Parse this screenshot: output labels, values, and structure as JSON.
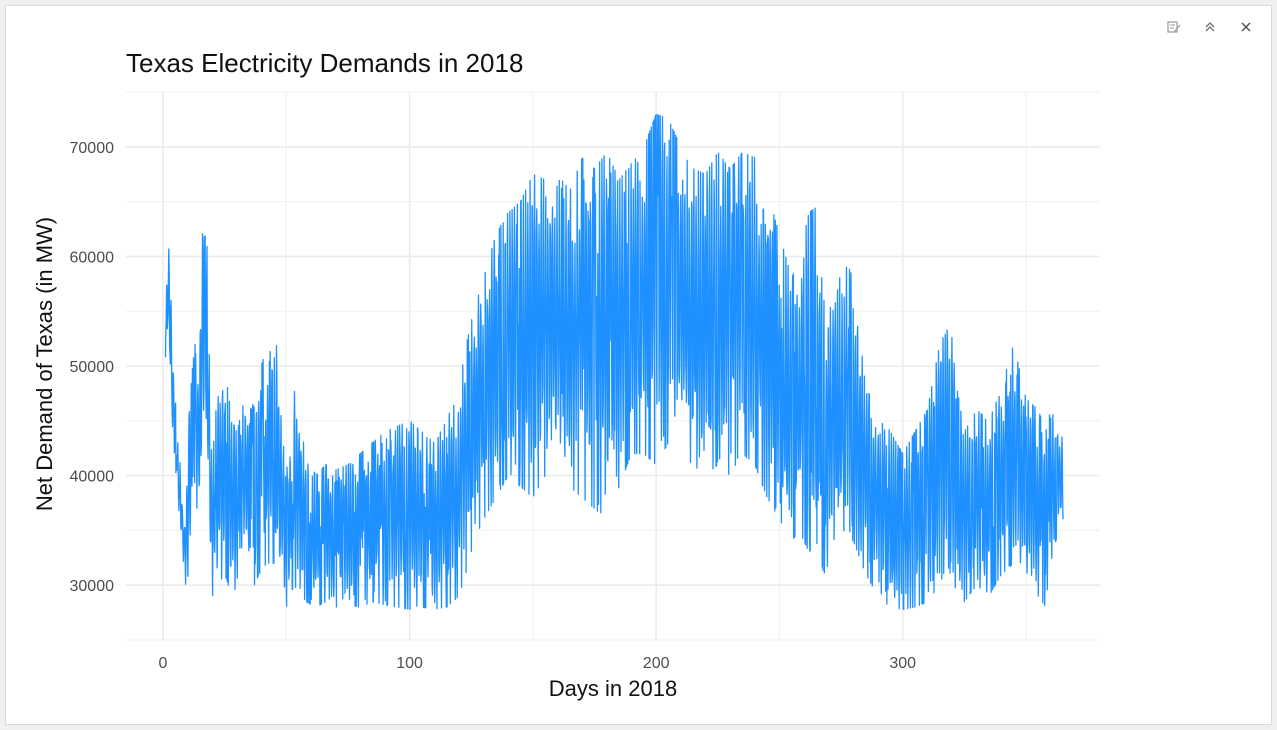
{
  "toolbar": {
    "icons": [
      "broom-icon",
      "chevron-double-up-icon",
      "close-icon"
    ]
  },
  "chart_data": {
    "type": "line",
    "title": "Texas Electricity Demands in 2018",
    "xlabel": "Days in 2018",
    "ylabel": "Net Demand of Texas (in MW)",
    "xlim": [
      -15,
      380
    ],
    "ylim": [
      25000,
      75000
    ],
    "xticks": [
      0,
      100,
      200,
      300
    ],
    "yticks": [
      30000,
      40000,
      50000,
      60000,
      70000
    ],
    "grid": true,
    "legend": "none",
    "series_color": "#1E90FF",
    "series": [
      {
        "x": [
          1,
          1.5,
          2,
          3,
          4,
          5,
          6,
          7,
          8,
          9,
          10,
          11,
          12,
          13,
          14,
          15,
          16,
          17,
          18,
          19,
          20,
          21,
          22,
          25,
          28,
          30,
          33,
          36,
          39,
          42,
          45,
          48,
          50,
          53,
          55,
          58,
          62,
          66,
          70,
          75,
          80,
          85,
          90,
          95,
          100,
          105,
          110,
          115,
          120,
          123,
          126,
          130,
          135,
          140,
          145,
          150,
          155,
          160,
          165,
          170,
          175,
          180,
          185,
          190,
          195,
          200,
          205,
          210,
          215,
          220,
          225,
          230,
          235,
          240,
          245,
          250,
          255,
          258,
          262,
          265,
          268,
          272,
          276,
          280,
          285,
          290,
          295,
          300,
          305,
          310,
          315,
          318,
          322,
          325,
          330,
          335,
          340,
          345,
          350,
          355,
          358,
          360,
          362,
          365
        ],
        "high": [
          55000,
          57500,
          62500,
          57500,
          52000,
          47000,
          43000,
          41000,
          37000,
          35000,
          43000,
          47000,
          50000,
          52000,
          49000,
          56000,
          62000,
          65500,
          60000,
          48000,
          42000,
          44000,
          48000,
          50000,
          45000,
          44000,
          47000,
          46000,
          49000,
          52000,
          55500,
          45000,
          40000,
          48000,
          46000,
          42000,
          40000,
          41000,
          40500,
          41000,
          42000,
          43000,
          44000,
          44500,
          45000,
          44000,
          43000,
          45000,
          48000,
          52000,
          55000,
          58000,
          62000,
          64000,
          65000,
          67500,
          67000,
          67500,
          66000,
          69000,
          68000,
          69500,
          67000,
          68500,
          70000,
          73000,
          72500,
          70000,
          68000,
          67500,
          69500,
          68000,
          69500,
          69000,
          66000,
          62000,
          58000,
          60000,
          64000,
          64500,
          56000,
          55000,
          60000,
          58000,
          48000,
          46000,
          44000,
          42000,
          44000,
          46000,
          52000,
          57000,
          48000,
          44000,
          46000,
          45000,
          48000,
          52000,
          47000,
          46000,
          44000,
          46000,
          45000,
          44000
        ],
        "low": [
          50000,
          51000,
          52000,
          48000,
          44000,
          41000,
          38000,
          35000,
          33000,
          30000,
          30500,
          32000,
          36000,
          38000,
          36000,
          37000,
          40000,
          45000,
          38000,
          33000,
          29000,
          29500,
          30000,
          31000,
          29000,
          30000,
          32000,
          29500,
          31000,
          32000,
          32000,
          29000,
          28000,
          30000,
          29500,
          28500,
          28000,
          28500,
          28000,
          28200,
          28000,
          28500,
          28200,
          28000,
          27800,
          28000,
          27800,
          28000,
          29000,
          31000,
          34000,
          36000,
          38000,
          40000,
          39000,
          38000,
          40000,
          41000,
          39000,
          38000,
          37000,
          36000,
          39000,
          42000,
          42000,
          41000,
          43000,
          42000,
          41000,
          40000,
          41000,
          40000,
          42000,
          41000,
          38000,
          36000,
          34000,
          35000,
          33000,
          34000,
          31000,
          33000,
          35000,
          34000,
          31000,
          29000,
          28000,
          27800,
          28000,
          28500,
          30000,
          32000,
          29000,
          28500,
          30000,
          29000,
          31000,
          32000,
          30000,
          29000,
          28000,
          32000,
          34000,
          36000
        ]
      }
    ]
  }
}
